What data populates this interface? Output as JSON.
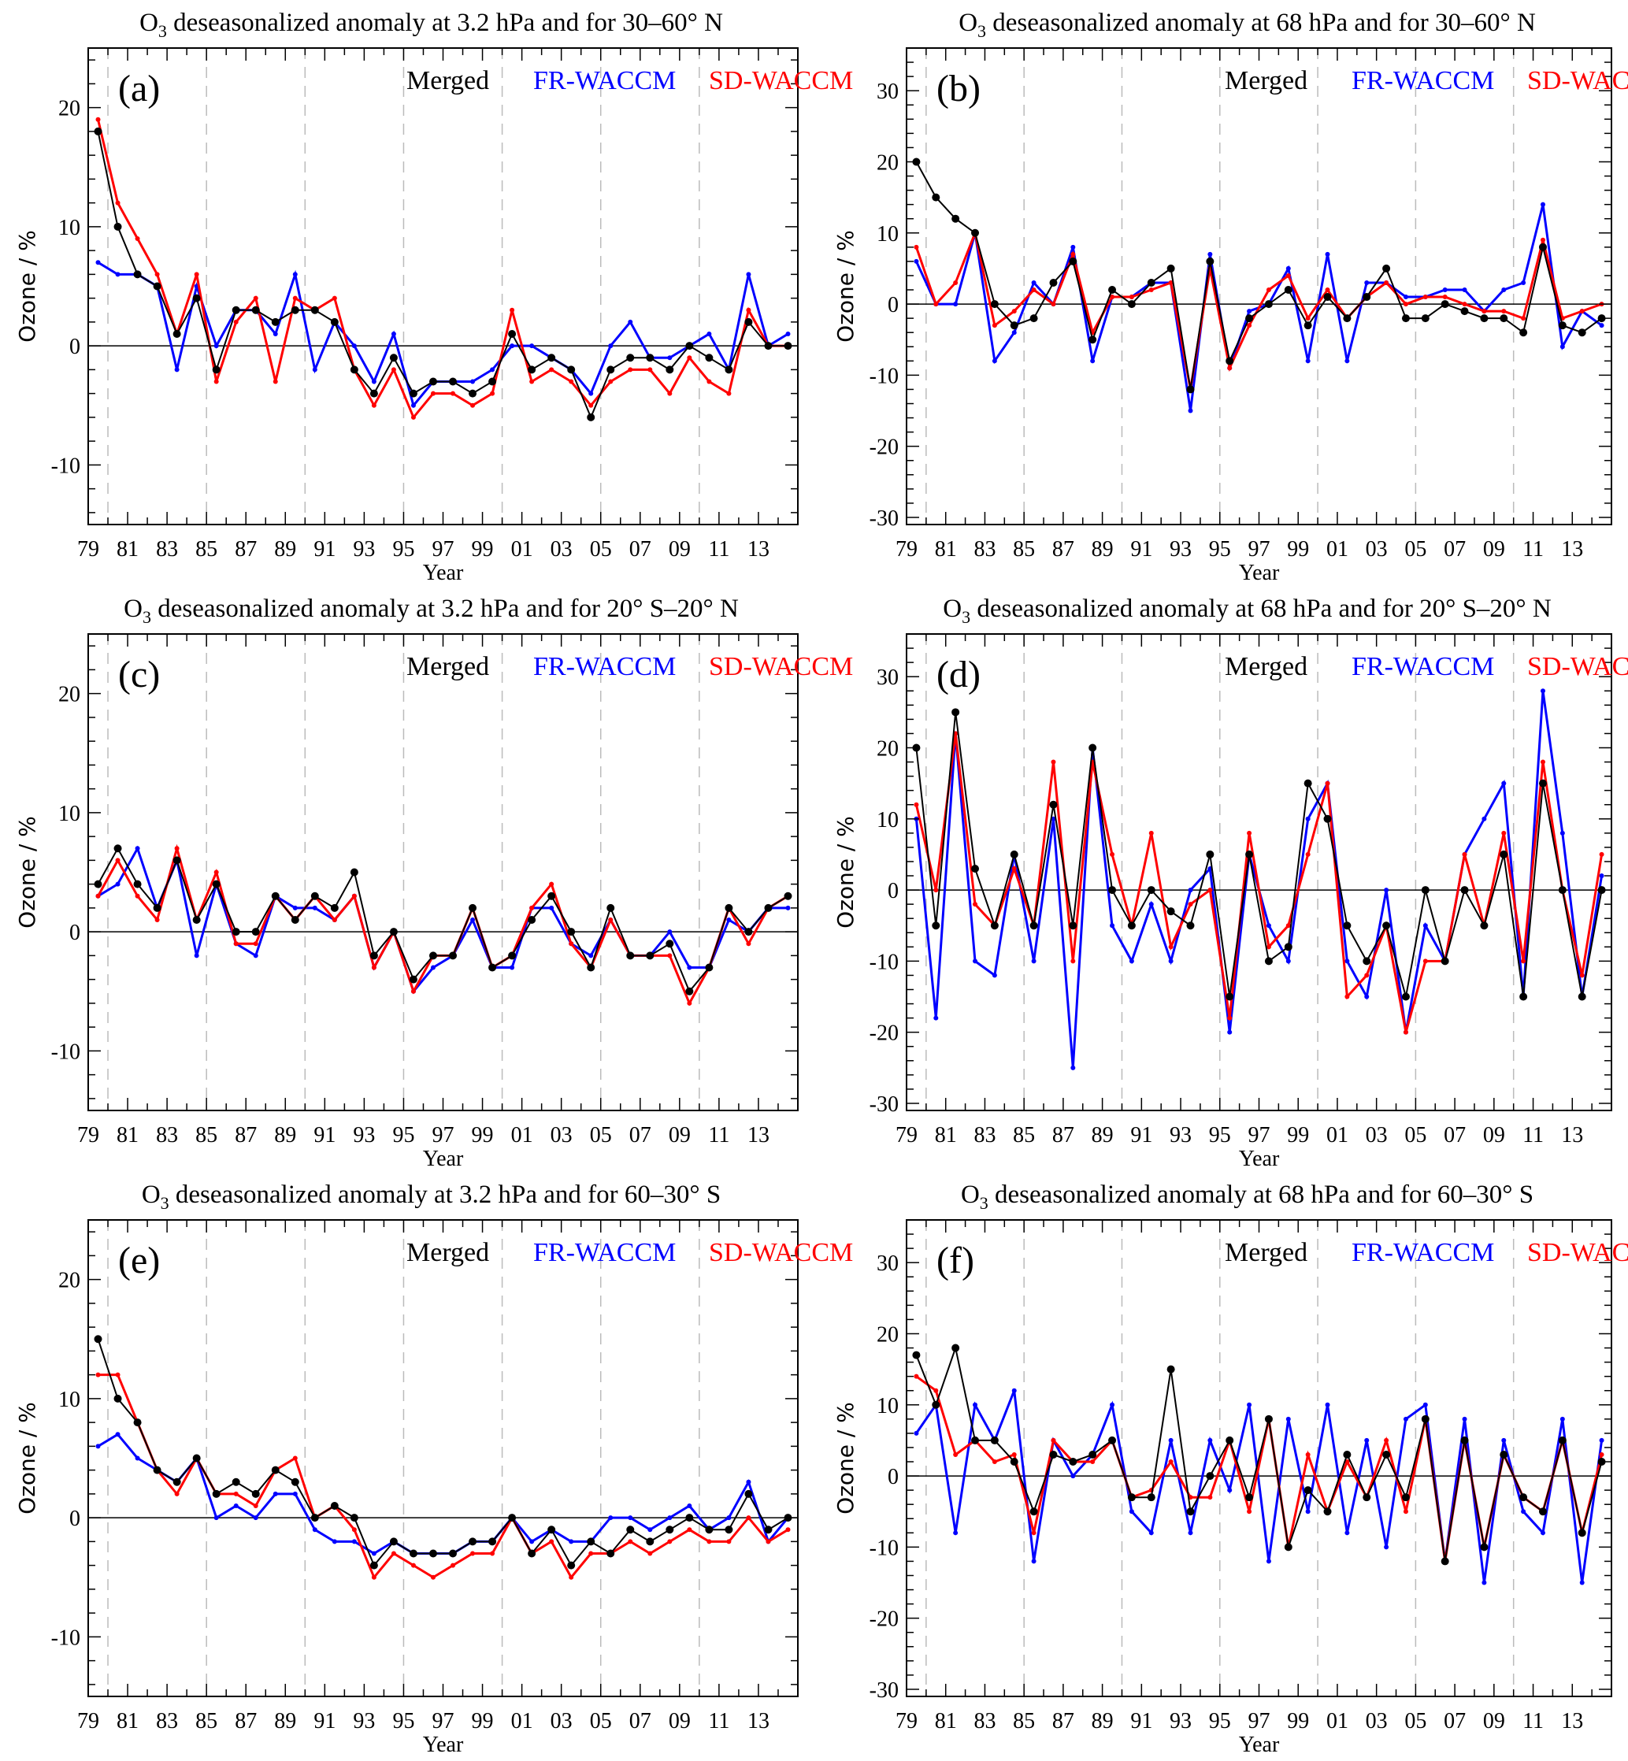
{
  "colors": {
    "merged": "#000000",
    "fr": "#0000ff",
    "sd": "#ff0000",
    "grid": "#bbbbbb"
  },
  "legend": {
    "merged": "Merged",
    "fr": "FR-WACCM",
    "sd": "SD-WACCM"
  },
  "chart_data": [
    {
      "type": "line",
      "panel": "(a)",
      "title_prefix": "O",
      "title_sub": "3",
      "title_rest": " deseasonalized anomaly at 3.2 hPa and for 30–60° N",
      "xlabel": "Year",
      "ylabel": "Ozone / %",
      "xlim": [
        1979,
        2015
      ],
      "ylim": [
        -15,
        25
      ],
      "yticks": [
        -10,
        0,
        10,
        20
      ],
      "x": [
        1979.5,
        1980.5,
        1981.5,
        1982.5,
        1983.5,
        1984.5,
        1985.5,
        1986.5,
        1987.5,
        1988.5,
        1989.5,
        1990.5,
        1991.5,
        1992.5,
        1993.5,
        1994.5,
        1995.5,
        1996.5,
        1997.5,
        1998.5,
        1999.5,
        2000.5,
        2001.5,
        2002.5,
        2003.5,
        2004.5,
        2005.5,
        2006.5,
        2007.5,
        2008.5,
        2009.5,
        2010.5,
        2011.5,
        2012.5,
        2013.5,
        2014.5
      ],
      "series": [
        {
          "name": "Merged",
          "values": [
            18,
            10,
            6,
            5,
            1,
            4,
            -2,
            3,
            3,
            2,
            3,
            3,
            2,
            -2,
            -4,
            -1,
            -4,
            -3,
            -3,
            -4,
            -3,
            1,
            -2,
            -1,
            -2,
            -6,
            -2,
            -1,
            -1,
            -2,
            0,
            -1,
            -2,
            2,
            0,
            0
          ]
        },
        {
          "name": "FR-WACCM",
          "values": [
            7,
            6,
            6,
            5,
            -2,
            5,
            0,
            3,
            3,
            1,
            6,
            -2,
            2,
            0,
            -3,
            1,
            -5,
            -3,
            -3,
            -3,
            -2,
            0,
            0,
            -1,
            -2,
            -4,
            0,
            2,
            -1,
            -1,
            0,
            1,
            -2,
            6,
            0,
            1
          ]
        },
        {
          "name": "SD-WACCM",
          "values": [
            19,
            12,
            9,
            6,
            1,
            6,
            -3,
            2,
            4,
            -3,
            4,
            3,
            4,
            -2,
            -5,
            -2,
            -6,
            -4,
            -4,
            -5,
            -4,
            3,
            -3,
            -2,
            -3,
            -5,
            -3,
            -2,
            -2,
            -4,
            -1,
            -3,
            -4,
            3,
            0,
            0
          ]
        }
      ]
    },
    {
      "type": "line",
      "panel": "(b)",
      "title_prefix": "O",
      "title_sub": "3",
      "title_rest": " deseasonalized anomaly at 68 hPa and for 30–60° N",
      "xlabel": "Year",
      "ylabel": "Ozone / %",
      "xlim": [
        1979,
        2015
      ],
      "ylim": [
        -31,
        36
      ],
      "yticks": [
        -30,
        -20,
        -10,
        0,
        10,
        20,
        30
      ],
      "x": [
        1979.5,
        1980.5,
        1981.5,
        1982.5,
        1983.5,
        1984.5,
        1985.5,
        1986.5,
        1987.5,
        1988.5,
        1989.5,
        1990.5,
        1991.5,
        1992.5,
        1993.5,
        1994.5,
        1995.5,
        1996.5,
        1997.5,
        1998.5,
        1999.5,
        2000.5,
        2001.5,
        2002.5,
        2003.5,
        2004.5,
        2005.5,
        2006.5,
        2007.5,
        2008.5,
        2009.5,
        2010.5,
        2011.5,
        2012.5,
        2013.5,
        2014.5
      ],
      "series": [
        {
          "name": "Merged",
          "values": [
            20,
            15,
            12,
            10,
            0,
            -3,
            -2,
            3,
            6,
            -5,
            2,
            0,
            3,
            5,
            -12,
            6,
            -8,
            -2,
            0,
            2,
            -3,
            1,
            -2,
            1,
            5,
            -2,
            -2,
            0,
            -1,
            -2,
            -2,
            -4,
            8,
            -3,
            -4,
            -2
          ]
        },
        {
          "name": "FR-WACCM",
          "values": [
            6,
            0,
            0,
            10,
            -8,
            -4,
            3,
            0,
            8,
            -8,
            1,
            1,
            3,
            3,
            -15,
            7,
            -9,
            -1,
            0,
            5,
            -8,
            7,
            -8,
            3,
            3,
            1,
            1,
            2,
            2,
            -1,
            2,
            3,
            14,
            -6,
            -1,
            -3
          ]
        },
        {
          "name": "SD-WACCM",
          "values": [
            8,
            0,
            3,
            10,
            -3,
            -1,
            2,
            0,
            7,
            -4,
            1,
            1,
            2,
            3,
            -12,
            5,
            -9,
            -3,
            2,
            4,
            -2,
            2,
            -2,
            1,
            3,
            0,
            1,
            1,
            0,
            -1,
            -1,
            -2,
            9,
            -2,
            -1,
            0
          ]
        }
      ]
    },
    {
      "type": "line",
      "panel": "(c)",
      "title_prefix": "O",
      "title_sub": "3",
      "title_rest": " deseasonalized anomaly at 3.2 hPa and for 20° S–20° N",
      "xlabel": "Year",
      "ylabel": "Ozone / %",
      "xlim": [
        1979,
        2015
      ],
      "ylim": [
        -15,
        25
      ],
      "yticks": [
        -10,
        0,
        10,
        20
      ],
      "x": [
        1979.5,
        1980.5,
        1981.5,
        1982.5,
        1983.5,
        1984.5,
        1985.5,
        1986.5,
        1987.5,
        1988.5,
        1989.5,
        1990.5,
        1991.5,
        1992.5,
        1993.5,
        1994.5,
        1995.5,
        1996.5,
        1997.5,
        1998.5,
        1999.5,
        2000.5,
        2001.5,
        2002.5,
        2003.5,
        2004.5,
        2005.5,
        2006.5,
        2007.5,
        2008.5,
        2009.5,
        2010.5,
        2011.5,
        2012.5,
        2013.5,
        2014.5
      ],
      "series": [
        {
          "name": "Merged",
          "values": [
            4,
            7,
            4,
            2,
            6,
            1,
            4,
            0,
            0,
            3,
            1,
            3,
            2,
            5,
            -2,
            0,
            -4,
            -2,
            -2,
            2,
            -3,
            -2,
            1,
            3,
            0,
            -3,
            2,
            -2,
            -2,
            -1,
            -5,
            -3,
            2,
            0,
            2,
            3
          ]
        },
        {
          "name": "FR-WACCM",
          "values": [
            3,
            4,
            7,
            2,
            6,
            -2,
            4,
            -1,
            -2,
            3,
            2,
            2,
            1,
            3,
            -3,
            0,
            -5,
            -3,
            -2,
            1,
            -3,
            -3,
            2,
            2,
            -1,
            -2,
            1,
            -2,
            -2,
            0,
            -3,
            -3,
            1,
            0,
            2,
            2
          ]
        },
        {
          "name": "SD-WACCM",
          "values": [
            3,
            6,
            3,
            1,
            7,
            1,
            5,
            -1,
            -1,
            3,
            1,
            3,
            1,
            3,
            -3,
            0,
            -5,
            -2,
            -2,
            2,
            -3,
            -2,
            2,
            4,
            -1,
            -3,
            1,
            -2,
            -2,
            -2,
            -6,
            -3,
            2,
            -1,
            2,
            3
          ]
        }
      ]
    },
    {
      "type": "line",
      "panel": "(d)",
      "title_prefix": "O",
      "title_sub": "3",
      "title_rest": " deseasonalized anomaly at 68 hPa and for 20° S–20° N",
      "xlabel": "Year",
      "ylabel": "Ozone / %",
      "xlim": [
        1979,
        2015
      ],
      "ylim": [
        -31,
        36
      ],
      "yticks": [
        -30,
        -20,
        -10,
        0,
        10,
        20,
        30
      ],
      "x": [
        1979.5,
        1980.5,
        1981.5,
        1982.5,
        1983.5,
        1984.5,
        1985.5,
        1986.5,
        1987.5,
        1988.5,
        1989.5,
        1990.5,
        1991.5,
        1992.5,
        1993.5,
        1994.5,
        1995.5,
        1996.5,
        1997.5,
        1998.5,
        1999.5,
        2000.5,
        2001.5,
        2002.5,
        2003.5,
        2004.5,
        2005.5,
        2006.5,
        2007.5,
        2008.5,
        2009.5,
        2010.5,
        2011.5,
        2012.5,
        2013.5,
        2014.5
      ],
      "series": [
        {
          "name": "Merged",
          "values": [
            20,
            -5,
            25,
            3,
            -5,
            5,
            -5,
            12,
            -5,
            20,
            0,
            -5,
            0,
            -3,
            -5,
            5,
            -15,
            5,
            -10,
            -8,
            15,
            10,
            -5,
            -10,
            -5,
            -15,
            0,
            -10,
            0,
            -5,
            5,
            -15,
            15,
            0,
            -15,
            0
          ]
        },
        {
          "name": "FR-WACCM",
          "values": [
            10,
            -18,
            22,
            -10,
            -12,
            5,
            -10,
            10,
            -25,
            20,
            -5,
            -10,
            -2,
            -10,
            0,
            3,
            -20,
            5,
            -5,
            -10,
            10,
            15,
            -10,
            -15,
            0,
            -20,
            -5,
            -10,
            5,
            10,
            15,
            -15,
            28,
            8,
            -15,
            2
          ]
        },
        {
          "name": "SD-WACCM",
          "values": [
            12,
            0,
            22,
            -2,
            -5,
            3,
            -5,
            18,
            -10,
            18,
            5,
            -5,
            8,
            -8,
            -2,
            0,
            -18,
            8,
            -8,
            -5,
            5,
            15,
            -15,
            -12,
            -5,
            -20,
            -10,
            -10,
            5,
            -5,
            8,
            -10,
            18,
            0,
            -12,
            5
          ]
        }
      ]
    },
    {
      "type": "line",
      "panel": "(e)",
      "title_prefix": "O",
      "title_sub": "3",
      "title_rest": " deseasonalized anomaly at 3.2 hPa and for 60–30° S",
      "xlabel": "Year",
      "ylabel": "Ozone / %",
      "xlim": [
        1979,
        2015
      ],
      "ylim": [
        -15,
        25
      ],
      "yticks": [
        -10,
        0,
        10,
        20
      ],
      "x": [
        1979.5,
        1980.5,
        1981.5,
        1982.5,
        1983.5,
        1984.5,
        1985.5,
        1986.5,
        1987.5,
        1988.5,
        1989.5,
        1990.5,
        1991.5,
        1992.5,
        1993.5,
        1994.5,
        1995.5,
        1996.5,
        1997.5,
        1998.5,
        1999.5,
        2000.5,
        2001.5,
        2002.5,
        2003.5,
        2004.5,
        2005.5,
        2006.5,
        2007.5,
        2008.5,
        2009.5,
        2010.5,
        2011.5,
        2012.5,
        2013.5,
        2014.5
      ],
      "series": [
        {
          "name": "Merged",
          "values": [
            15,
            10,
            8,
            4,
            3,
            5,
            2,
            3,
            2,
            4,
            3,
            0,
            1,
            0,
            -4,
            -2,
            -3,
            -3,
            -3,
            -2,
            -2,
            0,
            -3,
            -1,
            -4,
            -2,
            -3,
            -1,
            -2,
            -1,
            0,
            -1,
            -1,
            2,
            -1,
            0
          ]
        },
        {
          "name": "FR-WACCM",
          "values": [
            6,
            7,
            5,
            4,
            3,
            5,
            0,
            1,
            0,
            2,
            2,
            -1,
            -2,
            -2,
            -3,
            -2,
            -3,
            -3,
            -3,
            -2,
            -2,
            0,
            -2,
            -1,
            -2,
            -2,
            0,
            0,
            -1,
            0,
            1,
            -1,
            0,
            3,
            -2,
            0
          ]
        },
        {
          "name": "SD-WACCM",
          "values": [
            12,
            12,
            8,
            4,
            2,
            5,
            2,
            2,
            1,
            4,
            5,
            0,
            1,
            -1,
            -5,
            -3,
            -4,
            -5,
            -4,
            -3,
            -3,
            0,
            -3,
            -2,
            -5,
            -3,
            -3,
            -2,
            -3,
            -2,
            -1,
            -2,
            -2,
            0,
            -2,
            -1
          ]
        }
      ]
    },
    {
      "type": "line",
      "panel": "(f)",
      "title_prefix": "O",
      "title_sub": "3",
      "title_rest": " deseasonalized anomaly at 68 hPa and for 60–30° S",
      "xlabel": "Year",
      "ylabel": "Ozone / %",
      "xlim": [
        1979,
        2015
      ],
      "ylim": [
        -31,
        36
      ],
      "yticks": [
        -30,
        -20,
        -10,
        0,
        10,
        20,
        30
      ],
      "x": [
        1979.5,
        1980.5,
        1981.5,
        1982.5,
        1983.5,
        1984.5,
        1985.5,
        1986.5,
        1987.5,
        1988.5,
        1989.5,
        1990.5,
        1991.5,
        1992.5,
        1993.5,
        1994.5,
        1995.5,
        1996.5,
        1997.5,
        1998.5,
        1999.5,
        2000.5,
        2001.5,
        2002.5,
        2003.5,
        2004.5,
        2005.5,
        2006.5,
        2007.5,
        2008.5,
        2009.5,
        2010.5,
        2011.5,
        2012.5,
        2013.5,
        2014.5
      ],
      "series": [
        {
          "name": "Merged",
          "values": [
            17,
            10,
            18,
            5,
            5,
            2,
            -5,
            3,
            2,
            3,
            5,
            -3,
            -3,
            15,
            -5,
            0,
            5,
            -3,
            8,
            -10,
            -2,
            -5,
            3,
            -3,
            3,
            -3,
            8,
            -12,
            5,
            -10,
            3,
            -3,
            -5,
            5,
            -8,
            2
          ]
        },
        {
          "name": "FR-WACCM",
          "values": [
            6,
            10,
            -8,
            10,
            5,
            12,
            -12,
            5,
            0,
            3,
            10,
            -5,
            -8,
            5,
            -8,
            5,
            -2,
            10,
            -12,
            8,
            -5,
            10,
            -8,
            5,
            -10,
            8,
            10,
            -12,
            8,
            -15,
            5,
            -5,
            -8,
            8,
            -15,
            5
          ]
        },
        {
          "name": "SD-WACCM",
          "values": [
            14,
            12,
            3,
            5,
            2,
            3,
            -8,
            5,
            2,
            2,
            5,
            -3,
            -2,
            2,
            -3,
            -3,
            5,
            -5,
            8,
            -10,
            3,
            -5,
            2,
            -3,
            5,
            -5,
            8,
            -12,
            5,
            -10,
            3,
            -3,
            -5,
            5,
            -8,
            3
          ]
        }
      ]
    }
  ],
  "xtick_labels": [
    "79",
    "81",
    "83",
    "85",
    "87",
    "89",
    "91",
    "93",
    "95",
    "97",
    "99",
    "01",
    "03",
    "05",
    "07",
    "09",
    "11",
    "13"
  ]
}
